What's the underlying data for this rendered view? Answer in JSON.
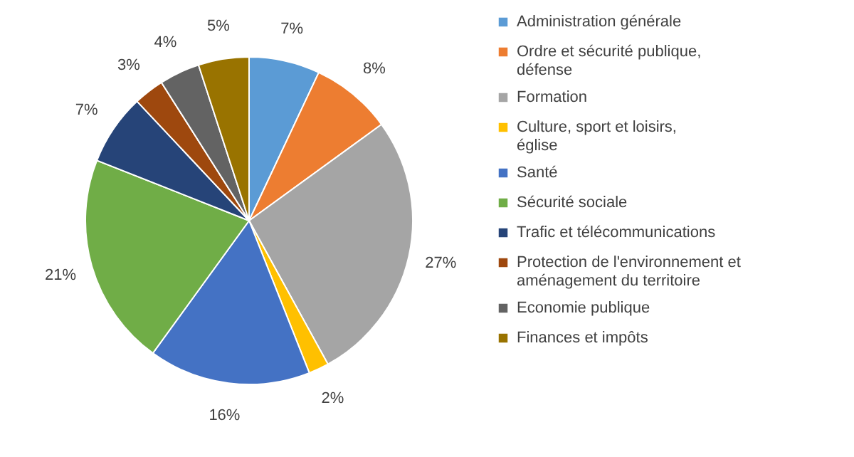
{
  "chart_data": {
    "type": "pie",
    "categories": [
      "Administration générale",
      "Ordre et sécurité publique, défense",
      "Formation",
      "Culture, sport et loisirs, église",
      "Santé",
      "Sécurité sociale",
      "Trafic et télécommunications",
      "Protection de l'environnement et aménagement du territoire",
      "Economie publique",
      "Finances et impôts"
    ],
    "values": [
      7,
      8,
      27,
      2,
      16,
      21,
      7,
      3,
      4,
      5
    ],
    "value_labels": [
      "7%",
      "8%",
      "27%",
      "2%",
      "16%",
      "21%",
      "7%",
      "3%",
      "4%",
      "5%"
    ],
    "colors": [
      "#5b9bd5",
      "#ed7d31",
      "#a5a5a5",
      "#ffc000",
      "#4472c4",
      "#70ad47",
      "#264478",
      "#9e480e",
      "#636363",
      "#997300"
    ],
    "legend": "right"
  }
}
